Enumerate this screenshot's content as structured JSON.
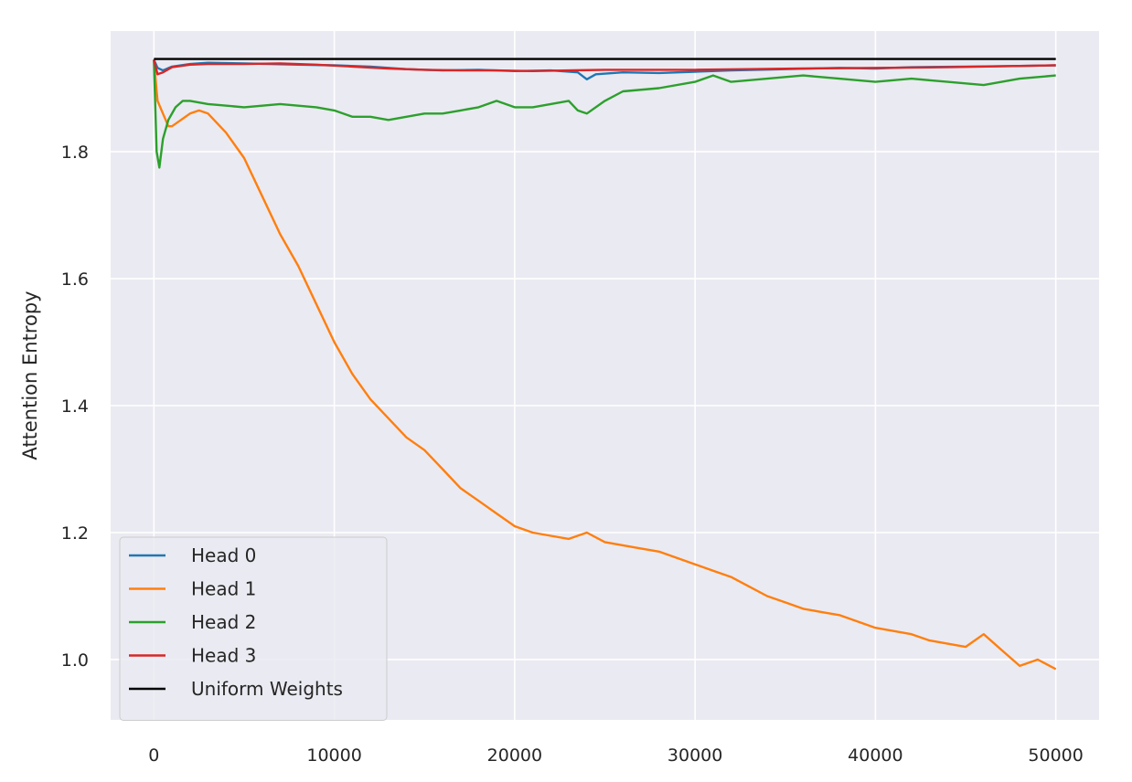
{
  "chart_data": {
    "type": "line",
    "title": "",
    "xlabel": "",
    "ylabel": "Attention Entropy",
    "xlim": [
      -2400,
      52400
    ],
    "ylim": [
      0.905,
      1.99
    ],
    "xticks": [
      0,
      10000,
      20000,
      30000,
      40000,
      50000
    ],
    "yticks": [
      1.0,
      1.2,
      1.4,
      1.6,
      1.8
    ],
    "xtick_labels": [
      "0",
      "10000",
      "20000",
      "30000",
      "40000",
      "50000"
    ],
    "ytick_labels": [
      "1.0",
      "1.2",
      "1.4",
      "1.6",
      "1.8"
    ],
    "grid": true,
    "legend_position": "lower-left",
    "background_color": "#eaeaf2",
    "series": [
      {
        "name": "Head 0",
        "color": "#1f77b4",
        "x": [
          0,
          200,
          500,
          1000,
          2000,
          3000,
          5000,
          8000,
          10000,
          12000,
          14000,
          16000,
          18000,
          20000,
          22000,
          23500,
          24000,
          24500,
          26000,
          28000,
          30000,
          32000,
          35000,
          38000,
          40000,
          42000,
          45000,
          48000,
          50000
        ],
        "y": [
          1.945,
          1.932,
          1.928,
          1.934,
          1.938,
          1.94,
          1.939,
          1.937,
          1.936,
          1.934,
          1.93,
          1.928,
          1.929,
          1.927,
          1.928,
          1.925,
          1.914,
          1.922,
          1.925,
          1.924,
          1.926,
          1.928,
          1.93,
          1.932,
          1.931,
          1.933,
          1.934,
          1.935,
          1.936
        ]
      },
      {
        "name": "Head 1",
        "color": "#ff7f0e",
        "x": [
          0,
          200,
          500,
          800,
          1000,
          1500,
          2000,
          2500,
          3000,
          4000,
          5000,
          6000,
          7000,
          8000,
          9000,
          10000,
          11000,
          12000,
          13000,
          14000,
          15000,
          16000,
          17000,
          18000,
          19000,
          20000,
          21000,
          22000,
          23000,
          24000,
          25000,
          26000,
          27000,
          28000,
          29000,
          30000,
          31000,
          32000,
          33000,
          34000,
          35000,
          36000,
          37000,
          38000,
          39000,
          40000,
          41000,
          42000,
          43000,
          44000,
          45000,
          46000,
          47000,
          48000,
          49000,
          50000
        ],
        "y": [
          1.945,
          1.88,
          1.86,
          1.84,
          1.84,
          1.85,
          1.86,
          1.865,
          1.86,
          1.83,
          1.79,
          1.73,
          1.67,
          1.62,
          1.56,
          1.5,
          1.45,
          1.41,
          1.38,
          1.35,
          1.33,
          1.3,
          1.27,
          1.25,
          1.23,
          1.21,
          1.2,
          1.195,
          1.19,
          1.2,
          1.185,
          1.18,
          1.175,
          1.17,
          1.16,
          1.15,
          1.14,
          1.13,
          1.115,
          1.1,
          1.09,
          1.08,
          1.075,
          1.07,
          1.06,
          1.05,
          1.045,
          1.04,
          1.03,
          1.025,
          1.02,
          1.04,
          1.015,
          0.99,
          1.0,
          0.985
        ]
      },
      {
        "name": "Head 2",
        "color": "#2ca02c",
        "x": [
          0,
          150,
          300,
          500,
          800,
          1200,
          1600,
          2000,
          3000,
          5000,
          7000,
          9000,
          10000,
          11000,
          12000,
          13000,
          14000,
          15000,
          16000,
          17000,
          18000,
          19000,
          20000,
          21000,
          22000,
          23000,
          23500,
          24000,
          25000,
          26000,
          28000,
          30000,
          31000,
          32000,
          34000,
          36000,
          38000,
          40000,
          42000,
          44000,
          46000,
          48000,
          50000
        ],
        "y": [
          1.945,
          1.8,
          1.775,
          1.82,
          1.85,
          1.87,
          1.88,
          1.88,
          1.875,
          1.87,
          1.875,
          1.87,
          1.865,
          1.855,
          1.855,
          1.85,
          1.855,
          1.86,
          1.86,
          1.865,
          1.87,
          1.88,
          1.87,
          1.87,
          1.875,
          1.88,
          1.865,
          1.86,
          1.88,
          1.895,
          1.9,
          1.91,
          1.92,
          1.91,
          1.915,
          1.92,
          1.915,
          1.91,
          1.915,
          1.91,
          1.905,
          1.915,
          1.92
        ]
      },
      {
        "name": "Head 3",
        "color": "#d62728",
        "x": [
          0,
          200,
          500,
          1000,
          2000,
          3000,
          5000,
          7000,
          9000,
          11000,
          13000,
          15000,
          17000,
          19000,
          21000,
          23000,
          25000,
          27000,
          30000,
          33000,
          36000,
          40000,
          44000,
          48000,
          50000
        ],
        "y": [
          1.945,
          1.922,
          1.925,
          1.933,
          1.937,
          1.938,
          1.938,
          1.939,
          1.937,
          1.934,
          1.931,
          1.929,
          1.928,
          1.928,
          1.927,
          1.928,
          1.929,
          1.929,
          1.929,
          1.93,
          1.931,
          1.932,
          1.933,
          1.935,
          1.936
        ]
      },
      {
        "name": "Uniform Weights",
        "color": "#000000",
        "x": [
          0,
          50000
        ],
        "y": [
          1.946,
          1.946
        ]
      }
    ]
  }
}
